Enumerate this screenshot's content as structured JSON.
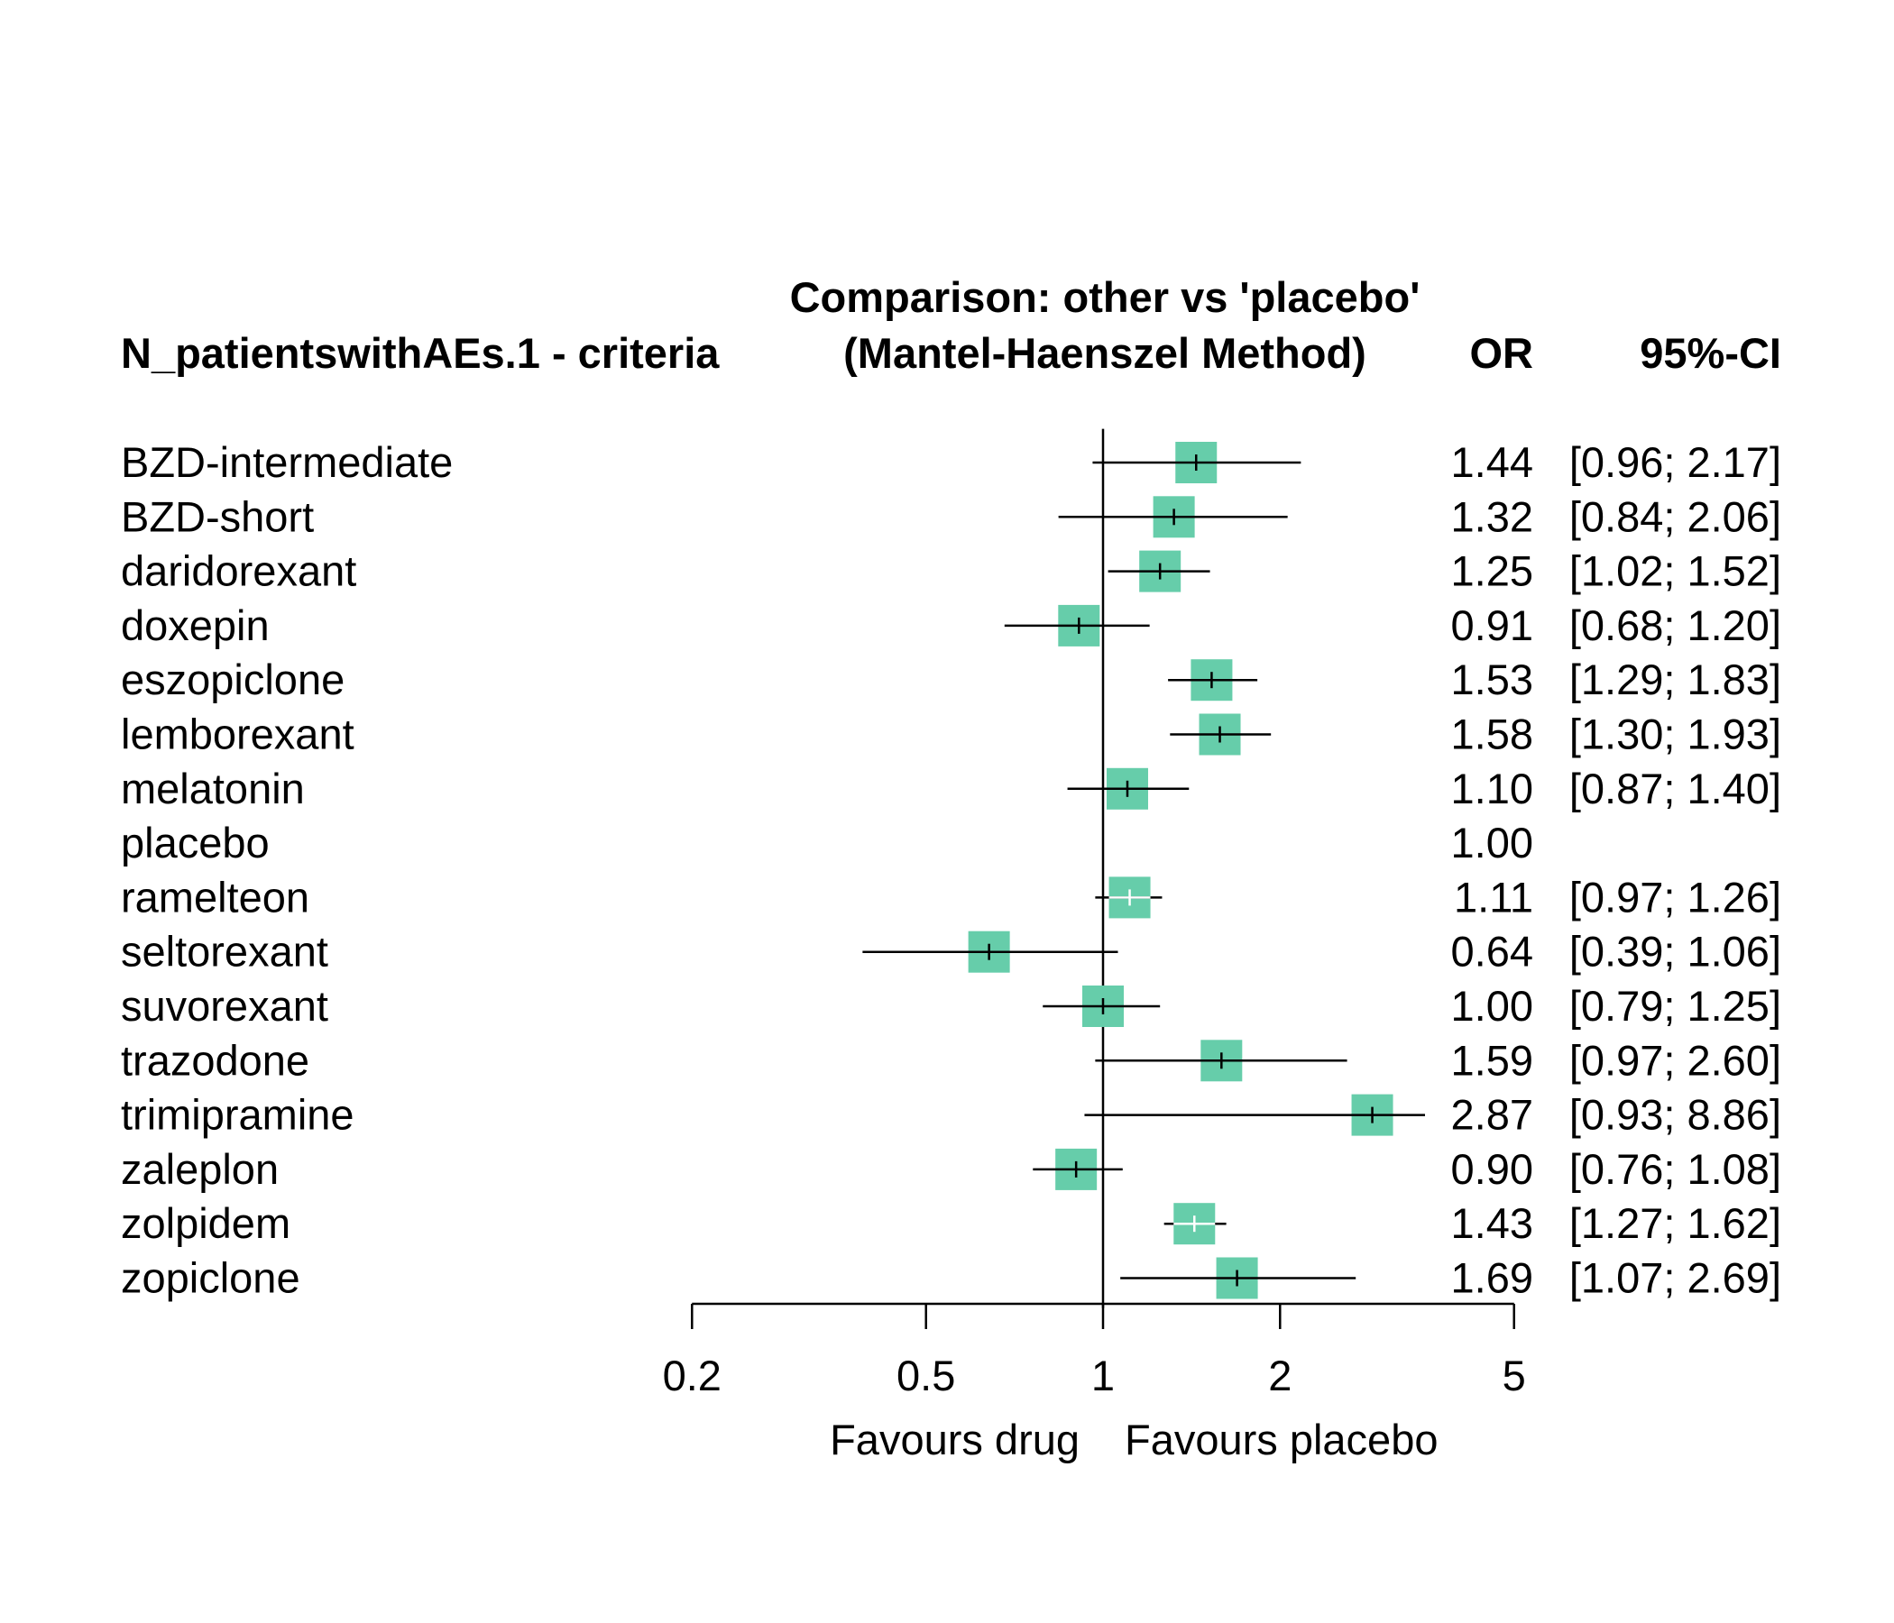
{
  "header": {
    "outcome": "N_patientswithAEs.1 - criteria",
    "comparison_line1": "Comparison: other vs 'placebo'",
    "comparison_line2": "(Mantel-Haenszel Method)",
    "or_label": "OR",
    "ci_label": "95%-CI"
  },
  "footer": {
    "left_label": "Favours drug",
    "right_label": "Favours placebo"
  },
  "colors": {
    "box": "#66cdaa",
    "line": "#000000"
  },
  "chart_data": {
    "type": "forest",
    "x_scale": "log",
    "reference_value": 1,
    "x_ticks": [
      0.2,
      0.5,
      1,
      2,
      5
    ],
    "x_tick_labels": [
      "0.2",
      "0.5",
      "1",
      "2",
      "5"
    ],
    "rows": [
      {
        "label": "BZD-intermediate",
        "or": 1.44,
        "lo": 0.96,
        "hi": 2.17,
        "or_text": "1.44",
        "ci_text": "[0.96; 2.17]",
        "tick": "black"
      },
      {
        "label": "BZD-short",
        "or": 1.32,
        "lo": 0.84,
        "hi": 2.06,
        "or_text": "1.32",
        "ci_text": "[0.84; 2.06]",
        "tick": "black"
      },
      {
        "label": "daridorexant",
        "or": 1.25,
        "lo": 1.02,
        "hi": 1.52,
        "or_text": "1.25",
        "ci_text": "[1.02; 1.52]",
        "tick": "black"
      },
      {
        "label": "doxepin",
        "or": 0.91,
        "lo": 0.68,
        "hi": 1.2,
        "or_text": "0.91",
        "ci_text": "[0.68; 1.20]",
        "tick": "black"
      },
      {
        "label": "eszopiclone",
        "or": 1.53,
        "lo": 1.29,
        "hi": 1.83,
        "or_text": "1.53",
        "ci_text": "[1.29; 1.83]",
        "tick": "black"
      },
      {
        "label": "lemborexant",
        "or": 1.58,
        "lo": 1.3,
        "hi": 1.93,
        "or_text": "1.58",
        "ci_text": "[1.30; 1.93]",
        "tick": "black"
      },
      {
        "label": "melatonin",
        "or": 1.1,
        "lo": 0.87,
        "hi": 1.4,
        "or_text": "1.10",
        "ci_text": "[0.87; 1.40]",
        "tick": "black"
      },
      {
        "label": "placebo",
        "or": 1.0,
        "lo": null,
        "hi": null,
        "or_text": "1.00",
        "ci_text": "",
        "tick": "none"
      },
      {
        "label": "ramelteon",
        "or": 1.11,
        "lo": 0.97,
        "hi": 1.26,
        "or_text": "1.11",
        "ci_text": "[0.97; 1.26]",
        "tick": "white"
      },
      {
        "label": "seltorexant",
        "or": 0.64,
        "lo": 0.39,
        "hi": 1.06,
        "or_text": "0.64",
        "ci_text": "[0.39; 1.06]",
        "tick": "black"
      },
      {
        "label": "suvorexant",
        "or": 1.0,
        "lo": 0.79,
        "hi": 1.25,
        "or_text": "1.00",
        "ci_text": "[0.79; 1.25]",
        "tick": "black"
      },
      {
        "label": "trazodone",
        "or": 1.59,
        "lo": 0.97,
        "hi": 2.6,
        "or_text": "1.59",
        "ci_text": "[0.97; 2.60]",
        "tick": "black"
      },
      {
        "label": "trimipramine",
        "or": 2.87,
        "lo": 0.93,
        "hi": 8.86,
        "or_text": "2.87",
        "ci_text": "[0.93; 8.86]",
        "tick": "black"
      },
      {
        "label": "zaleplon",
        "or": 0.9,
        "lo": 0.76,
        "hi": 1.08,
        "or_text": "0.90",
        "ci_text": "[0.76; 1.08]",
        "tick": "black"
      },
      {
        "label": "zolpidem",
        "or": 1.43,
        "lo": 1.27,
        "hi": 1.62,
        "or_text": "1.43",
        "ci_text": "[1.27; 1.62]",
        "tick": "white"
      },
      {
        "label": "zopiclone",
        "or": 1.69,
        "lo": 1.07,
        "hi": 2.69,
        "or_text": "1.69",
        "ci_text": "[1.07; 2.69]",
        "tick": "black"
      }
    ]
  }
}
